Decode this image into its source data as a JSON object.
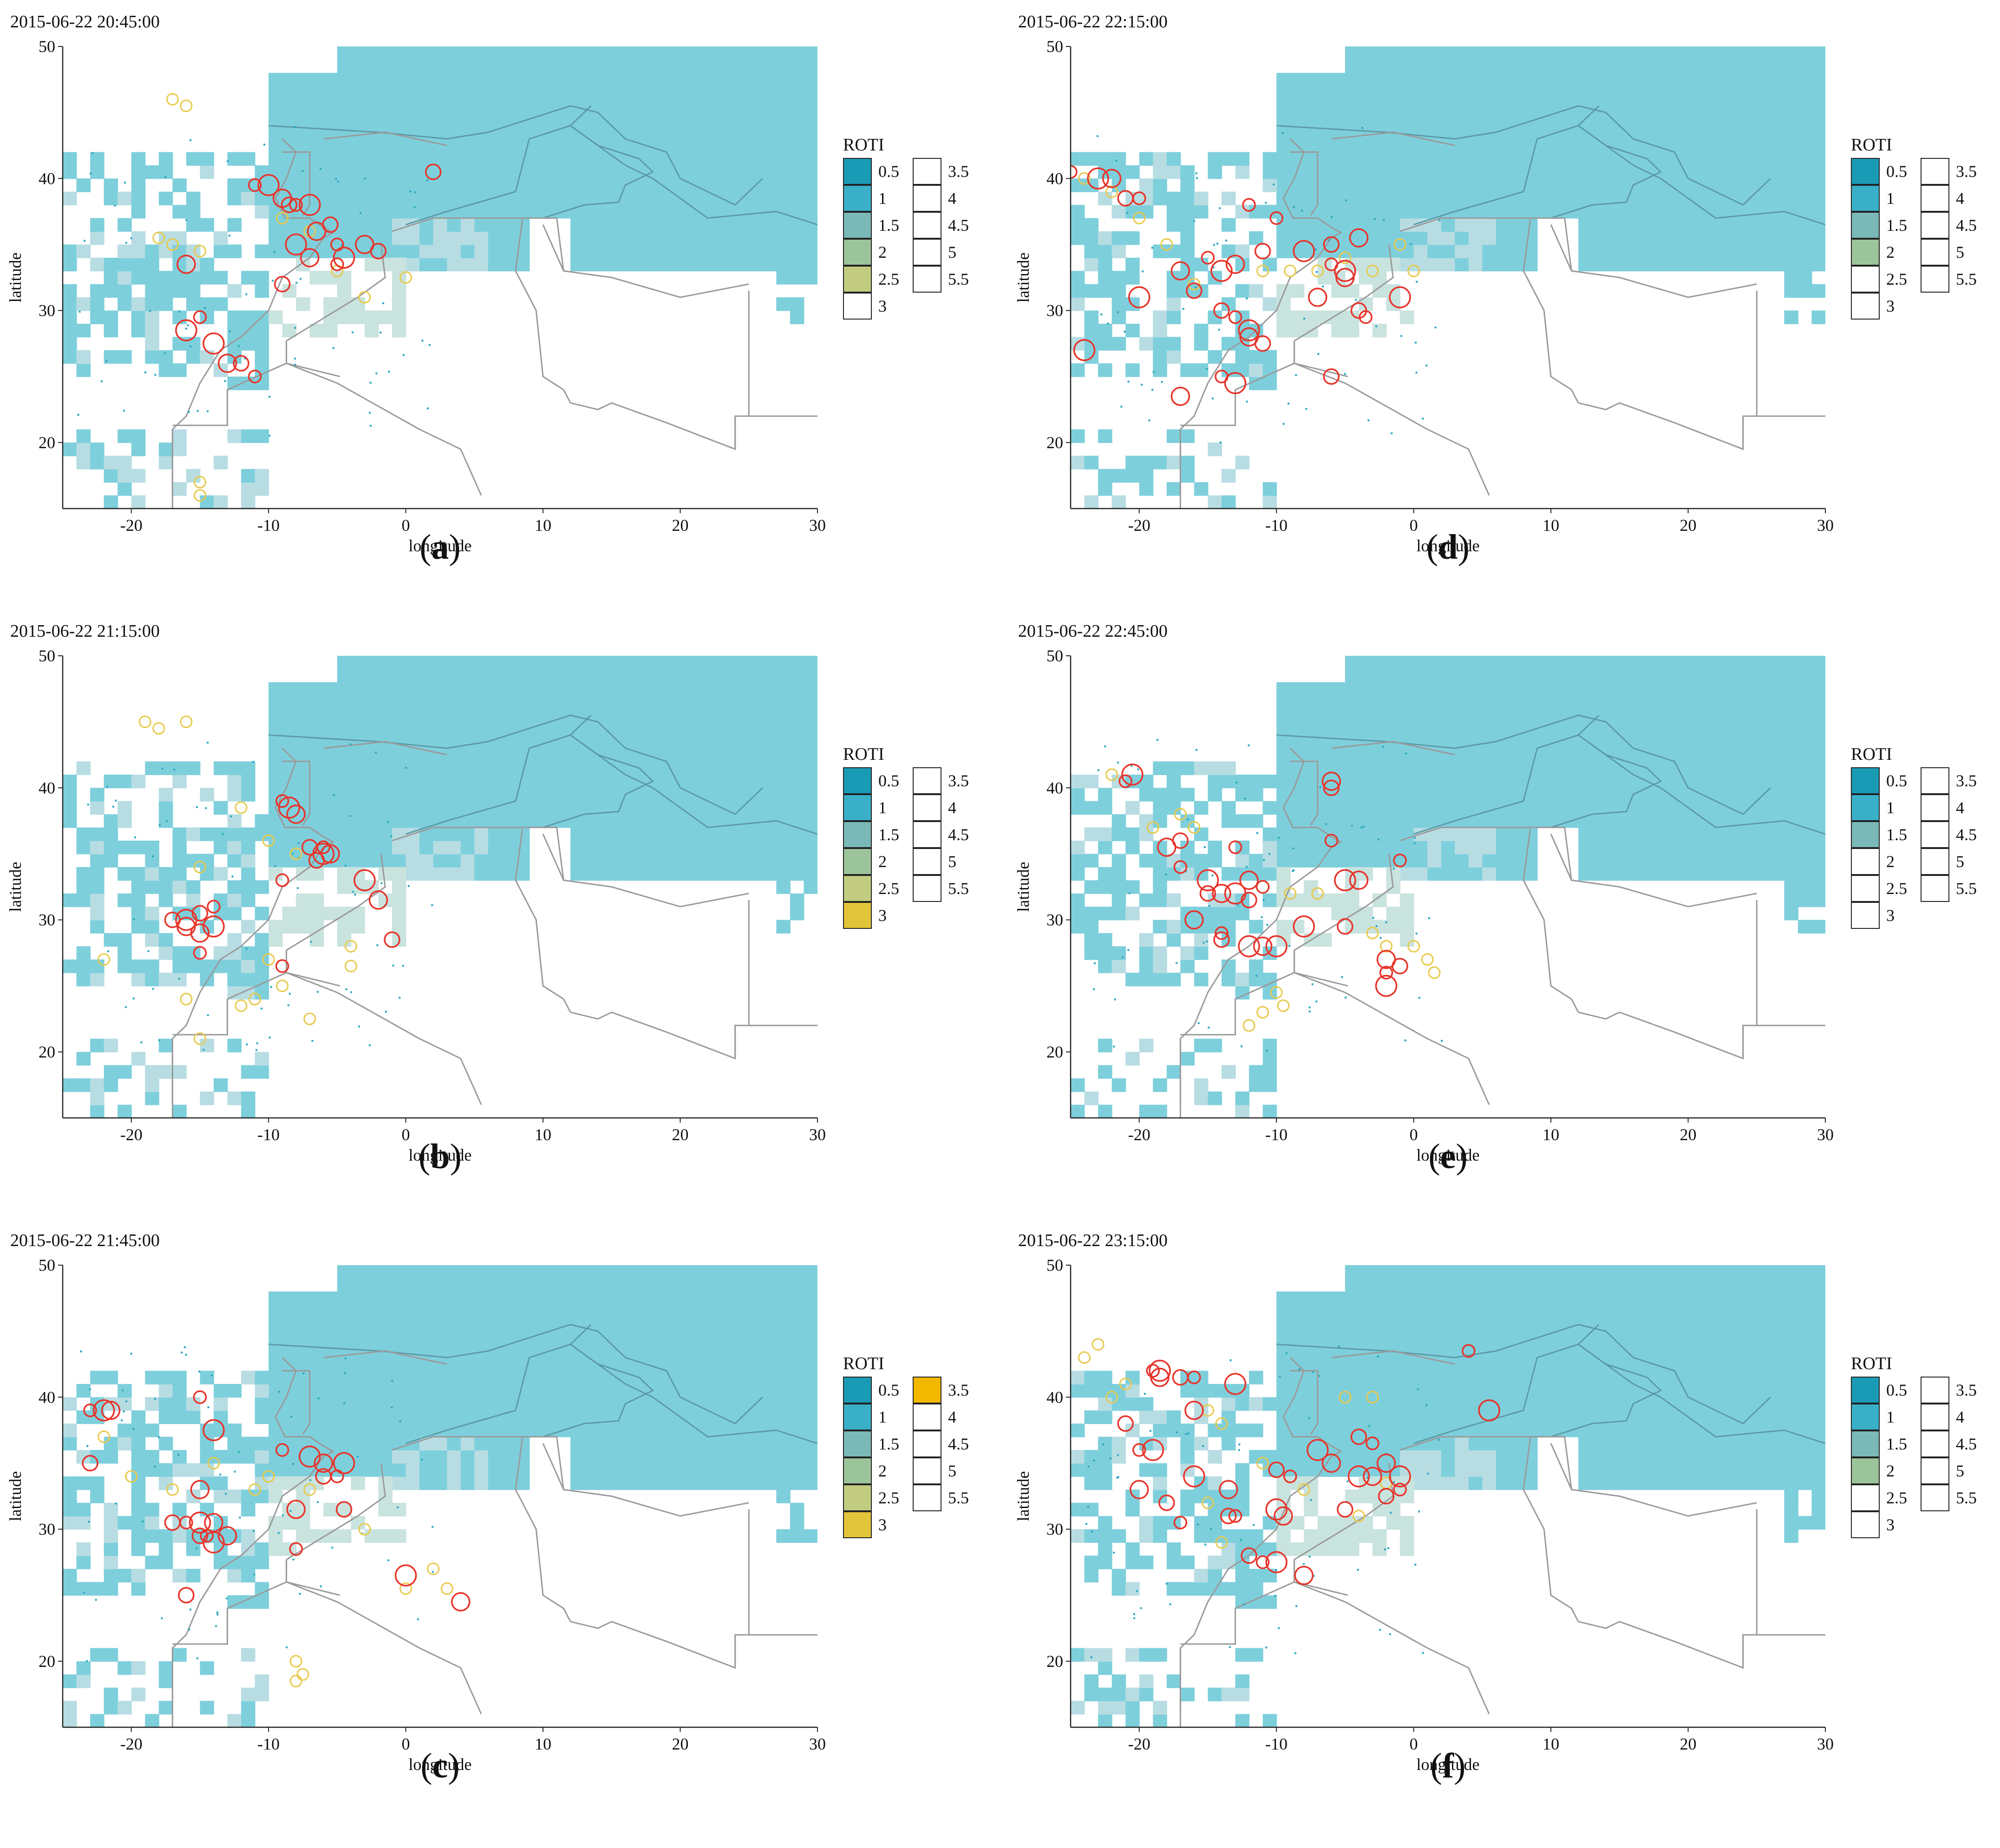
{
  "figure": {
    "common": {
      "xlabel": "longitude",
      "ylabel": "latitude",
      "xticks": [
        -20,
        -10,
        0,
        10,
        20,
        30
      ],
      "yticks": [
        20,
        30,
        40,
        50
      ],
      "xrange": [
        -25,
        30
      ],
      "yrange": [
        15,
        50
      ],
      "legend_title": "ROTI",
      "legend_labels": [
        "0.5",
        "1",
        "1.5",
        "2",
        "2.5",
        "3",
        "3.5",
        "4",
        "4.5",
        "5",
        "5.5"
      ]
    },
    "colors": {
      "roti_0.5": "#1a9bb5",
      "roti_1": "#3ab0c8",
      "roti_1.5": "#7bb8b8",
      "roti_2": "#9cc49a",
      "roti_2.5": "#c2cc80",
      "roti_3": "#e2c43a",
      "roti_3.5": "#f2b800",
      "empty": "#ffffff",
      "land_fill": "#7ecfdc",
      "ring_low": "#e8c94a",
      "ring_mid": "#2aa7c0",
      "ring_high": "#e8342a",
      "border": "#9a9a9a"
    },
    "panels": [
      {
        "id": "a",
        "caption_letter": "a",
        "timestamp": "2015-06-22 20:45:00",
        "legend_filled": [
          "0.5",
          "1",
          "1.5",
          "2",
          "2.5"
        ],
        "red_points": [
          [
            -11,
            39.5
          ],
          [
            -10,
            39.5
          ],
          [
            -9,
            38.5
          ],
          [
            -8.5,
            38
          ],
          [
            -8,
            38
          ],
          [
            -7,
            38
          ],
          [
            -6.5,
            36
          ],
          [
            -5.5,
            36.5
          ],
          [
            -5,
            35
          ],
          [
            -4.5,
            34
          ],
          [
            -3,
            35
          ],
          [
            -2,
            34.5
          ],
          [
            -5,
            33.5
          ],
          [
            -8,
            35
          ],
          [
            -7,
            34
          ],
          [
            -9,
            32
          ],
          [
            -15,
            29.5
          ],
          [
            -14,
            27.5
          ],
          [
            -13,
            26
          ],
          [
            -12,
            26
          ],
          [
            -11,
            25
          ],
          [
            -16,
            28.5
          ],
          [
            -16,
            33.5
          ],
          [
            2,
            40.5
          ]
        ],
        "yellow_points": [
          [
            -18,
            35.5
          ],
          [
            -17,
            35
          ],
          [
            -15,
            34.5
          ],
          [
            -9,
            37
          ],
          [
            -7,
            36
          ],
          [
            -5,
            33
          ],
          [
            -3,
            31
          ],
          [
            0,
            32.5
          ],
          [
            -17,
            46
          ],
          [
            -16,
            45.5
          ],
          [
            -15,
            17
          ],
          [
            -15,
            16
          ]
        ]
      },
      {
        "id": "d",
        "caption_letter": "d",
        "timestamp": "2015-06-22 22:15:00",
        "legend_filled": [
          "0.5",
          "1",
          "1.5",
          "2"
        ],
        "red_points": [
          [
            -25,
            40.5
          ],
          [
            -23,
            40
          ],
          [
            -22,
            40
          ],
          [
            -21,
            38.5
          ],
          [
            -20,
            38.5
          ],
          [
            -20,
            31
          ],
          [
            -17,
            33
          ],
          [
            -16,
            31.5
          ],
          [
            -15,
            34
          ],
          [
            -14,
            33
          ],
          [
            -13,
            33.5
          ],
          [
            -14,
            30
          ],
          [
            -13,
            29.5
          ],
          [
            -12,
            28.5
          ],
          [
            -12,
            28
          ],
          [
            -11,
            27.5
          ],
          [
            -14,
            25
          ],
          [
            -13,
            24.5
          ],
          [
            -17,
            23.5
          ],
          [
            -11,
            34.5
          ],
          [
            -10,
            37
          ],
          [
            -8,
            34.5
          ],
          [
            -7,
            31
          ],
          [
            -6,
            35
          ],
          [
            -6,
            33.5
          ],
          [
            -5,
            33
          ],
          [
            -5,
            32.5
          ],
          [
            -4,
            30
          ],
          [
            -3.5,
            29.5
          ],
          [
            -1,
            31
          ],
          [
            -4,
            35.5
          ],
          [
            -6,
            25
          ],
          [
            -12,
            38
          ],
          [
            -24,
            27
          ]
        ],
        "yellow_points": [
          [
            -24,
            40
          ],
          [
            -22,
            39
          ],
          [
            -20,
            37
          ],
          [
            -18,
            35
          ],
          [
            -16,
            32
          ],
          [
            -11,
            33
          ],
          [
            -9,
            33
          ],
          [
            -7,
            33
          ],
          [
            -5,
            34
          ],
          [
            -3,
            33
          ],
          [
            -1,
            35
          ],
          [
            0,
            33
          ]
        ]
      },
      {
        "id": "b",
        "caption_letter": "b",
        "timestamp": "2015-06-22 21:15:00",
        "legend_filled": [
          "0.5",
          "1",
          "1.5",
          "2",
          "2.5",
          "3"
        ],
        "red_points": [
          [
            -9,
            39
          ],
          [
            -8.5,
            38.5
          ],
          [
            -8,
            38
          ],
          [
            -7,
            35.5
          ],
          [
            -6,
            35.5
          ],
          [
            -6,
            35
          ],
          [
            -5.5,
            35
          ],
          [
            -6.5,
            34.5
          ],
          [
            -9,
            33
          ],
          [
            -16,
            30
          ],
          [
            -16,
            29.5
          ],
          [
            -15,
            30.5
          ],
          [
            -14,
            31
          ],
          [
            -14,
            29.5
          ],
          [
            -15,
            29
          ],
          [
            -17,
            30
          ],
          [
            -15,
            27.5
          ],
          [
            -3,
            33
          ],
          [
            -2,
            31.5
          ],
          [
            -1,
            28.5
          ],
          [
            -9,
            26.5
          ]
        ],
        "yellow_points": [
          [
            -19,
            45
          ],
          [
            -18,
            44.5
          ],
          [
            -16,
            45
          ],
          [
            -15,
            34
          ],
          [
            -12,
            38.5
          ],
          [
            -10,
            36
          ],
          [
            -8,
            35
          ],
          [
            -10,
            27
          ],
          [
            -11,
            24
          ],
          [
            -12,
            23.5
          ],
          [
            -9,
            25
          ],
          [
            -7,
            22.5
          ],
          [
            -16,
            24
          ],
          [
            -15,
            21
          ],
          [
            -22,
            27
          ],
          [
            -4,
            26.5
          ],
          [
            -4,
            28
          ]
        ]
      },
      {
        "id": "e",
        "caption_letter": "e",
        "timestamp": "2015-06-22 22:45:00",
        "legend_filled": [
          "0.5",
          "1",
          "1.5"
        ],
        "red_points": [
          [
            -21,
            40.5
          ],
          [
            -20.5,
            41
          ],
          [
            -18,
            35.5
          ],
          [
            -17,
            36
          ],
          [
            -17,
            34
          ],
          [
            -15,
            33
          ],
          [
            -14,
            32
          ],
          [
            -15,
            32
          ],
          [
            -13,
            35.5
          ],
          [
            -13,
            32
          ],
          [
            -12,
            33
          ],
          [
            -12,
            31.5
          ],
          [
            -11,
            32.5
          ],
          [
            -12,
            28
          ],
          [
            -11,
            28
          ],
          [
            -14,
            28.5
          ],
          [
            -14,
            29
          ],
          [
            -10,
            28
          ],
          [
            -6,
            40.5
          ],
          [
            -6,
            40
          ],
          [
            -6,
            36
          ],
          [
            -5,
            33
          ],
          [
            -4,
            33
          ],
          [
            -5,
            29.5
          ],
          [
            -2,
            26
          ],
          [
            -2,
            25
          ],
          [
            -2,
            27
          ],
          [
            -1,
            26.5
          ],
          [
            -1,
            34.5
          ],
          [
            -8,
            29.5
          ],
          [
            -16,
            30
          ]
        ],
        "yellow_points": [
          [
            -22,
            41
          ],
          [
            -19,
            37
          ],
          [
            -17,
            38
          ],
          [
            -16,
            37
          ],
          [
            -9,
            32
          ],
          [
            -7,
            32
          ],
          [
            -3,
            29
          ],
          [
            -2,
            28
          ],
          [
            0,
            28
          ],
          [
            1,
            27
          ],
          [
            1.5,
            26
          ],
          [
            -10,
            24.5
          ],
          [
            -9.5,
            23.5
          ],
          [
            -11,
            23
          ],
          [
            -12,
            22
          ]
        ]
      },
      {
        "id": "c",
        "caption_letter": "c",
        "timestamp": "2015-06-22 21:45:00",
        "legend_filled": [
          "0.5",
          "1",
          "1.5",
          "2",
          "2.5",
          "3",
          "3.5"
        ],
        "red_points": [
          [
            -23,
            39
          ],
          [
            -22,
            39
          ],
          [
            -21.5,
            39
          ],
          [
            -23,
            35
          ],
          [
            -15,
            40
          ],
          [
            -14,
            37.5
          ],
          [
            -15,
            33
          ],
          [
            -17,
            30.5
          ],
          [
            -16,
            30.5
          ],
          [
            -15,
            30.5
          ],
          [
            -14,
            30.5
          ],
          [
            -15,
            29.5
          ],
          [
            -14.5,
            29.5
          ],
          [
            -14,
            29
          ],
          [
            -13,
            29.5
          ],
          [
            -16,
            25
          ],
          [
            -9,
            36
          ],
          [
            -7,
            35.5
          ],
          [
            -6,
            35
          ],
          [
            -6,
            34
          ],
          [
            -5,
            34
          ],
          [
            -4.5,
            35
          ],
          [
            -8,
            31.5
          ],
          [
            -4.5,
            31.5
          ],
          [
            -8,
            28.5
          ],
          [
            0,
            26.5
          ],
          [
            4,
            24.5
          ]
        ],
        "yellow_points": [
          [
            -22,
            37
          ],
          [
            -20,
            34
          ],
          [
            -17,
            33
          ],
          [
            -14,
            35
          ],
          [
            -11,
            33
          ],
          [
            -10,
            34
          ],
          [
            -7,
            33
          ],
          [
            -3,
            30
          ],
          [
            0,
            25.5
          ],
          [
            2,
            27
          ],
          [
            3,
            25.5
          ],
          [
            -8,
            20
          ],
          [
            -7.5,
            19
          ],
          [
            -8,
            18.5
          ]
        ]
      },
      {
        "id": "f",
        "caption_letter": "f",
        "timestamp": "2015-06-22 23:15:00",
        "legend_filled": [
          "0.5",
          "1",
          "1.5",
          "2"
        ],
        "red_points": [
          [
            -19,
            42
          ],
          [
            -18.5,
            42
          ],
          [
            -18.5,
            41.5
          ],
          [
            -17,
            41.5
          ],
          [
            -16,
            41.5
          ],
          [
            -13,
            41
          ],
          [
            -16,
            39
          ],
          [
            -21,
            38
          ],
          [
            -20,
            36
          ],
          [
            -19,
            36
          ],
          [
            -20,
            33
          ],
          [
            -18,
            32
          ],
          [
            -17,
            30.5
          ],
          [
            -16,
            34
          ],
          [
            -13.5,
            33
          ],
          [
            -13.5,
            31
          ],
          [
            -13,
            31
          ],
          [
            -10,
            31.5
          ],
          [
            -9.5,
            31
          ],
          [
            -12,
            28
          ],
          [
            -11,
            27.5
          ],
          [
            -10,
            27.5
          ],
          [
            -8,
            26.5
          ],
          [
            -10,
            34.5
          ],
          [
            -9,
            34
          ],
          [
            -7,
            36
          ],
          [
            -6,
            35
          ],
          [
            -4,
            37
          ],
          [
            -3,
            36.5
          ],
          [
            -4,
            34
          ],
          [
            -3,
            34
          ],
          [
            -2,
            32.5
          ],
          [
            -1,
            33
          ],
          [
            -1,
            34
          ],
          [
            -2,
            35
          ],
          [
            -5,
            31.5
          ],
          [
            4,
            43.5
          ],
          [
            5.5,
            39
          ]
        ],
        "yellow_points": [
          [
            -24,
            43
          ],
          [
            -23,
            44
          ],
          [
            -22,
            40
          ],
          [
            -21,
            41
          ],
          [
            -15,
            39
          ],
          [
            -14,
            38
          ],
          [
            -15,
            32
          ],
          [
            -14,
            29
          ],
          [
            -11,
            35
          ],
          [
            -8,
            33
          ],
          [
            -5,
            40
          ],
          [
            -3,
            40
          ],
          [
            -4,
            31
          ],
          [
            -2,
            33.5
          ]
        ]
      }
    ]
  }
}
